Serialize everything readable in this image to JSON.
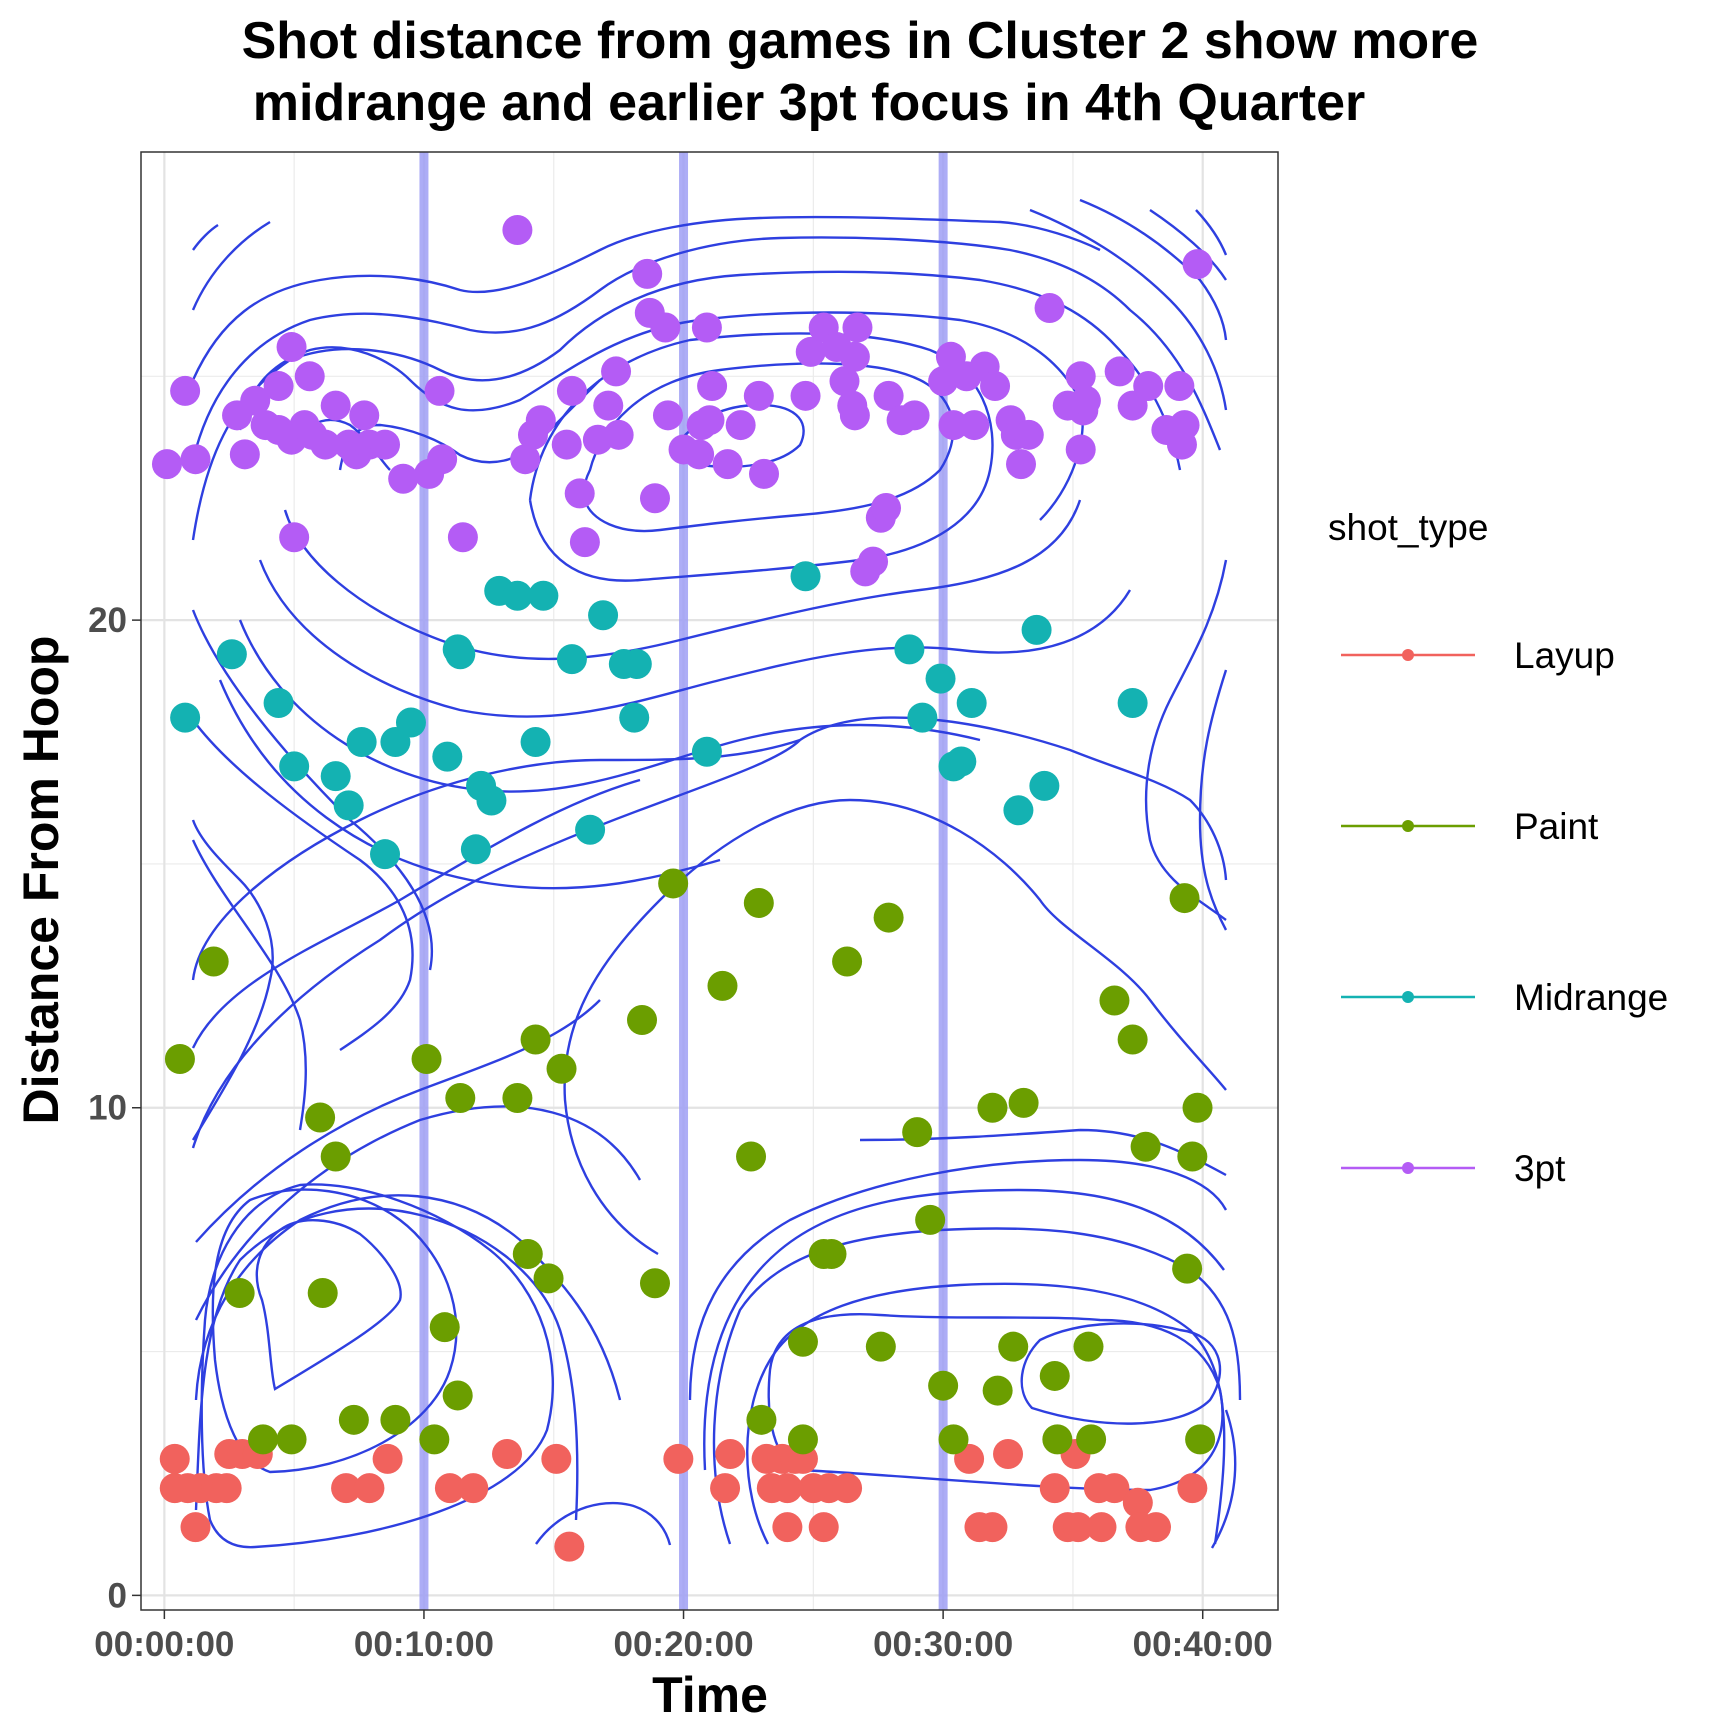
{
  "chart_data": {
    "type": "scatter",
    "title": [
      "Shot distance from games in Cluster 2 show more",
      "midrange and earlier 3pt focus in 4th Quarter"
    ],
    "xlabel": "Time",
    "ylabel": "Distance From Hoop",
    "xlim": [
      -0.9,
      42.9
    ],
    "ylim": [
      -0.3,
      29.6
    ],
    "x_ticks": [
      0,
      10,
      20,
      30,
      40
    ],
    "x_tick_labels": [
      "00:00:00",
      "00:10:00",
      "00:20:00",
      "00:30:00",
      "00:40:00"
    ],
    "x_unit": "minutes",
    "y_ticks": [
      0,
      10,
      20
    ],
    "y_tick_labels": [
      "0",
      "10",
      "20"
    ],
    "grid": true,
    "legend": {
      "title": "shot_type",
      "position": "right"
    },
    "quarter_lines": [
      10,
      20,
      30
    ],
    "quarter_line_color": "#9f9ff5",
    "contour_color": "#2e3fe0",
    "density_contours": true,
    "series": [
      {
        "name": "Layup",
        "color": "#f1625d",
        "points": [
          [
            0.4,
            2.8
          ],
          [
            0.4,
            2.2
          ],
          [
            0.9,
            2.2
          ],
          [
            1.2,
            1.4
          ],
          [
            1.4,
            2.2
          ],
          [
            2.0,
            2.2
          ],
          [
            2.4,
            2.2
          ],
          [
            2.5,
            2.9
          ],
          [
            3.0,
            2.9
          ],
          [
            3.6,
            2.9
          ],
          [
            7.0,
            2.2
          ],
          [
            7.9,
            2.2
          ],
          [
            8.6,
            2.8
          ],
          [
            11.0,
            2.2
          ],
          [
            11.9,
            2.2
          ],
          [
            13.2,
            2.9
          ],
          [
            15.1,
            2.8
          ],
          [
            15.6,
            1.0
          ],
          [
            19.8,
            2.8
          ],
          [
            21.6,
            2.2
          ],
          [
            21.8,
            2.9
          ],
          [
            23.2,
            2.8
          ],
          [
            23.4,
            2.2
          ],
          [
            23.8,
            2.8
          ],
          [
            24.0,
            2.2
          ],
          [
            24.3,
            2.8
          ],
          [
            24.0,
            1.4
          ],
          [
            24.6,
            2.8
          ],
          [
            25.0,
            2.2
          ],
          [
            25.4,
            1.4
          ],
          [
            25.6,
            2.2
          ],
          [
            26.3,
            2.2
          ],
          [
            31.0,
            2.8
          ],
          [
            31.4,
            1.4
          ],
          [
            31.9,
            1.4
          ],
          [
            32.5,
            2.9
          ],
          [
            34.3,
            2.2
          ],
          [
            34.8,
            1.4
          ],
          [
            35.1,
            2.9
          ],
          [
            35.2,
            1.4
          ],
          [
            36.0,
            2.2
          ],
          [
            36.1,
            1.4
          ],
          [
            36.6,
            2.2
          ],
          [
            37.5,
            1.9
          ],
          [
            37.6,
            1.4
          ],
          [
            38.2,
            1.4
          ],
          [
            39.6,
            2.2
          ]
        ]
      },
      {
        "name": "Paint",
        "color": "#6b9e00",
        "points": [
          [
            0.6,
            11.0
          ],
          [
            1.9,
            13.0
          ],
          [
            2.9,
            6.2
          ],
          [
            3.8,
            3.2
          ],
          [
            4.9,
            3.2
          ],
          [
            6.1,
            6.2
          ],
          [
            6.0,
            9.8
          ],
          [
            6.6,
            9.0
          ],
          [
            7.3,
            3.6
          ],
          [
            8.9,
            3.6
          ],
          [
            10.1,
            11.0
          ],
          [
            10.4,
            3.2
          ],
          [
            10.8,
            5.5
          ],
          [
            11.3,
            4.1
          ],
          [
            11.4,
            10.2
          ],
          [
            13.6,
            10.2
          ],
          [
            14.0,
            7.0
          ],
          [
            14.3,
            11.4
          ],
          [
            14.8,
            6.5
          ],
          [
            15.3,
            10.8
          ],
          [
            18.4,
            11.8
          ],
          [
            18.9,
            6.4
          ],
          [
            19.6,
            14.6
          ],
          [
            21.5,
            12.5
          ],
          [
            22.6,
            9.0
          ],
          [
            22.9,
            14.2
          ],
          [
            23.0,
            3.6
          ],
          [
            24.6,
            5.2
          ],
          [
            24.6,
            3.2
          ],
          [
            25.4,
            7.0
          ],
          [
            25.7,
            7.0
          ],
          [
            26.3,
            13.0
          ],
          [
            27.6,
            5.1
          ],
          [
            27.9,
            13.9
          ],
          [
            29.0,
            9.5
          ],
          [
            29.5,
            7.7
          ],
          [
            30.0,
            4.3
          ],
          [
            30.4,
            3.2
          ],
          [
            31.9,
            10.0
          ],
          [
            32.1,
            4.2
          ],
          [
            32.7,
            5.1
          ],
          [
            33.1,
            10.1
          ],
          [
            34.3,
            4.5
          ],
          [
            34.4,
            3.2
          ],
          [
            35.6,
            5.1
          ],
          [
            35.7,
            3.2
          ],
          [
            36.6,
            12.2
          ],
          [
            37.3,
            11.4
          ],
          [
            37.8,
            9.2
          ],
          [
            39.3,
            14.3
          ],
          [
            39.4,
            6.7
          ],
          [
            39.6,
            9.0
          ],
          [
            39.8,
            10.0
          ],
          [
            39.9,
            3.2
          ]
        ]
      },
      {
        "name": "Midrange",
        "color": "#14b2b2",
        "points": [
          [
            0.8,
            18.0
          ],
          [
            2.6,
            19.3
          ],
          [
            4.4,
            18.3
          ],
          [
            5.0,
            17.0
          ],
          [
            6.6,
            16.8
          ],
          [
            7.1,
            16.2
          ],
          [
            7.6,
            17.5
          ],
          [
            8.5,
            15.2
          ],
          [
            8.9,
            17.5
          ],
          [
            9.5,
            17.9
          ],
          [
            10.9,
            17.2
          ],
          [
            11.3,
            19.4
          ],
          [
            11.4,
            19.3
          ],
          [
            12.0,
            15.3
          ],
          [
            12.2,
            16.6
          ],
          [
            12.6,
            16.3
          ],
          [
            12.9,
            20.6
          ],
          [
            13.6,
            20.5
          ],
          [
            14.3,
            17.5
          ],
          [
            14.6,
            20.5
          ],
          [
            15.7,
            19.2
          ],
          [
            16.4,
            15.7
          ],
          [
            16.9,
            20.1
          ],
          [
            17.7,
            19.1
          ],
          [
            18.1,
            18.0
          ],
          [
            18.2,
            19.1
          ],
          [
            20.9,
            17.3
          ],
          [
            24.7,
            20.9
          ],
          [
            28.7,
            19.4
          ],
          [
            29.2,
            18.0
          ],
          [
            29.9,
            18.8
          ],
          [
            30.4,
            17.0
          ],
          [
            30.7,
            17.1
          ],
          [
            31.1,
            18.3
          ],
          [
            32.9,
            16.1
          ],
          [
            33.6,
            19.8
          ],
          [
            33.9,
            16.6
          ],
          [
            37.3,
            18.3
          ]
        ]
      },
      {
        "name": "3pt",
        "color": "#b45cf5",
        "points": [
          [
            0.1,
            23.2
          ],
          [
            0.8,
            24.7
          ],
          [
            1.2,
            23.3
          ],
          [
            2.8,
            24.2
          ],
          [
            3.1,
            23.4
          ],
          [
            3.5,
            24.5
          ],
          [
            3.9,
            24.0
          ],
          [
            4.4,
            24.8
          ],
          [
            4.4,
            23.9
          ],
          [
            4.9,
            25.6
          ],
          [
            4.9,
            23.7
          ],
          [
            5.0,
            21.7
          ],
          [
            5.4,
            24.0
          ],
          [
            5.6,
            25.0
          ],
          [
            5.7,
            23.8
          ],
          [
            6.2,
            23.6
          ],
          [
            6.6,
            24.4
          ],
          [
            7.1,
            23.6
          ],
          [
            7.4,
            23.4
          ],
          [
            7.7,
            24.2
          ],
          [
            7.9,
            23.6
          ],
          [
            8.5,
            23.6
          ],
          [
            9.2,
            22.9
          ],
          [
            10.2,
            23.0
          ],
          [
            10.6,
            24.7
          ],
          [
            10.7,
            23.3
          ],
          [
            11.5,
            21.7
          ],
          [
            13.6,
            28.0
          ],
          [
            13.9,
            23.3
          ],
          [
            14.2,
            23.8
          ],
          [
            14.5,
            24.1
          ],
          [
            15.5,
            23.6
          ],
          [
            15.7,
            24.7
          ],
          [
            16.0,
            22.6
          ],
          [
            16.2,
            21.6
          ],
          [
            16.7,
            23.7
          ],
          [
            17.1,
            24.4
          ],
          [
            17.4,
            25.1
          ],
          [
            17.5,
            23.8
          ],
          [
            18.6,
            27.1
          ],
          [
            18.7,
            26.3
          ],
          [
            18.9,
            22.5
          ],
          [
            19.3,
            26.0
          ],
          [
            19.4,
            24.2
          ],
          [
            20.0,
            23.5
          ],
          [
            20.6,
            23.4
          ],
          [
            20.7,
            24.0
          ],
          [
            20.9,
            26.0
          ],
          [
            21.0,
            24.1
          ],
          [
            21.1,
            24.8
          ],
          [
            21.7,
            23.2
          ],
          [
            22.2,
            24.0
          ],
          [
            22.9,
            24.6
          ],
          [
            23.1,
            23.0
          ],
          [
            24.7,
            24.6
          ],
          [
            24.9,
            25.5
          ],
          [
            25.4,
            26.0
          ],
          [
            25.9,
            25.6
          ],
          [
            26.2,
            24.9
          ],
          [
            26.5,
            24.4
          ],
          [
            26.6,
            24.2
          ],
          [
            26.6,
            25.4
          ],
          [
            26.7,
            26.0
          ],
          [
            27.0,
            21.0
          ],
          [
            27.3,
            21.2
          ],
          [
            27.6,
            22.1
          ],
          [
            27.8,
            22.3
          ],
          [
            27.9,
            24.6
          ],
          [
            28.4,
            24.1
          ],
          [
            28.9,
            24.2
          ],
          [
            30.0,
            24.9
          ],
          [
            30.3,
            25.4
          ],
          [
            30.4,
            24.0
          ],
          [
            30.9,
            25.0
          ],
          [
            31.2,
            24.0
          ],
          [
            31.6,
            25.2
          ],
          [
            32.0,
            24.8
          ],
          [
            32.6,
            24.1
          ],
          [
            32.8,
            23.8
          ],
          [
            33.0,
            23.2
          ],
          [
            33.3,
            23.8
          ],
          [
            34.1,
            26.4
          ],
          [
            34.8,
            24.4
          ],
          [
            35.3,
            25.0
          ],
          [
            35.3,
            23.5
          ],
          [
            35.4,
            24.3
          ],
          [
            35.5,
            24.5
          ],
          [
            36.8,
            25.1
          ],
          [
            37.3,
            24.4
          ],
          [
            37.9,
            24.8
          ],
          [
            38.6,
            23.9
          ],
          [
            39.1,
            24.8
          ],
          [
            39.2,
            23.6
          ],
          [
            39.3,
            24.0
          ],
          [
            39.8,
            27.3
          ]
        ]
      }
    ]
  }
}
